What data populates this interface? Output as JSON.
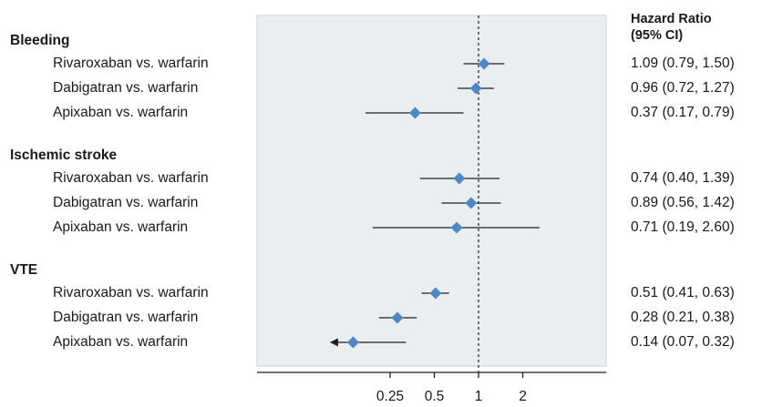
{
  "chart_data": {
    "type": "forest",
    "x_scale": "log",
    "xlim": [
      0.1,
      4
    ],
    "x_ticks": [
      "0.25",
      "0.5",
      "1",
      "2"
    ],
    "x_tick_values": [
      0.25,
      0.5,
      1,
      2
    ],
    "reference_line": 1,
    "column_header": [
      "Hazard Ratio",
      "(95% CI)"
    ],
    "groups": [
      {
        "label": "Bleeding",
        "rows": [
          {
            "label": "Rivaroxaban vs. warfarin",
            "hr": 1.09,
            "lo": 0.79,
            "hi": 1.5,
            "ci_text": "1.09 (0.79, 1.50)",
            "truncated": false
          },
          {
            "label": "Dabigatran vs. warfarin",
            "hr": 0.96,
            "lo": 0.72,
            "hi": 1.27,
            "ci_text": "0.96 (0.72, 1.27)",
            "truncated": false
          },
          {
            "label": "Apixaban vs. warfarin",
            "hr": 0.37,
            "lo": 0.17,
            "hi": 0.79,
            "ci_text": "0.37 (0.17, 0.79)",
            "truncated": false
          }
        ]
      },
      {
        "label": "Ischemic stroke",
        "rows": [
          {
            "label": "Rivaroxaban vs. warfarin",
            "hr": 0.74,
            "lo": 0.4,
            "hi": 1.39,
            "ci_text": "0.74 (0.40, 1.39)",
            "truncated": false
          },
          {
            "label": "Dabigatran vs. warfarin",
            "hr": 0.89,
            "lo": 0.56,
            "hi": 1.42,
            "ci_text": "0.89 (0.56, 1.42)",
            "truncated": false
          },
          {
            "label": "Apixaban vs. warfarin",
            "hr": 0.71,
            "lo": 0.19,
            "hi": 2.6,
            "ci_text": "0.71 (0.19, 2.60)",
            "truncated": false
          }
        ]
      },
      {
        "label": "VTE",
        "rows": [
          {
            "label": "Rivaroxaban vs. warfarin",
            "hr": 0.51,
            "lo": 0.41,
            "hi": 0.63,
            "ci_text": "0.51 (0.41, 0.63)",
            "truncated": false
          },
          {
            "label": "Dabigatran vs. warfarin",
            "hr": 0.28,
            "lo": 0.21,
            "hi": 0.38,
            "ci_text": "0.28 (0.21, 0.38)",
            "truncated": false
          },
          {
            "label": "Apixaban vs. warfarin",
            "hr": 0.14,
            "lo": 0.07,
            "hi": 0.32,
            "ci_text": "0.14 (0.07, 0.32)",
            "truncated": true
          }
        ]
      }
    ],
    "colors": {
      "panel": "#e9eef0",
      "panel_border": "#c9d0d3",
      "marker": "#4f86c6",
      "line": "#1f1f1f"
    }
  }
}
